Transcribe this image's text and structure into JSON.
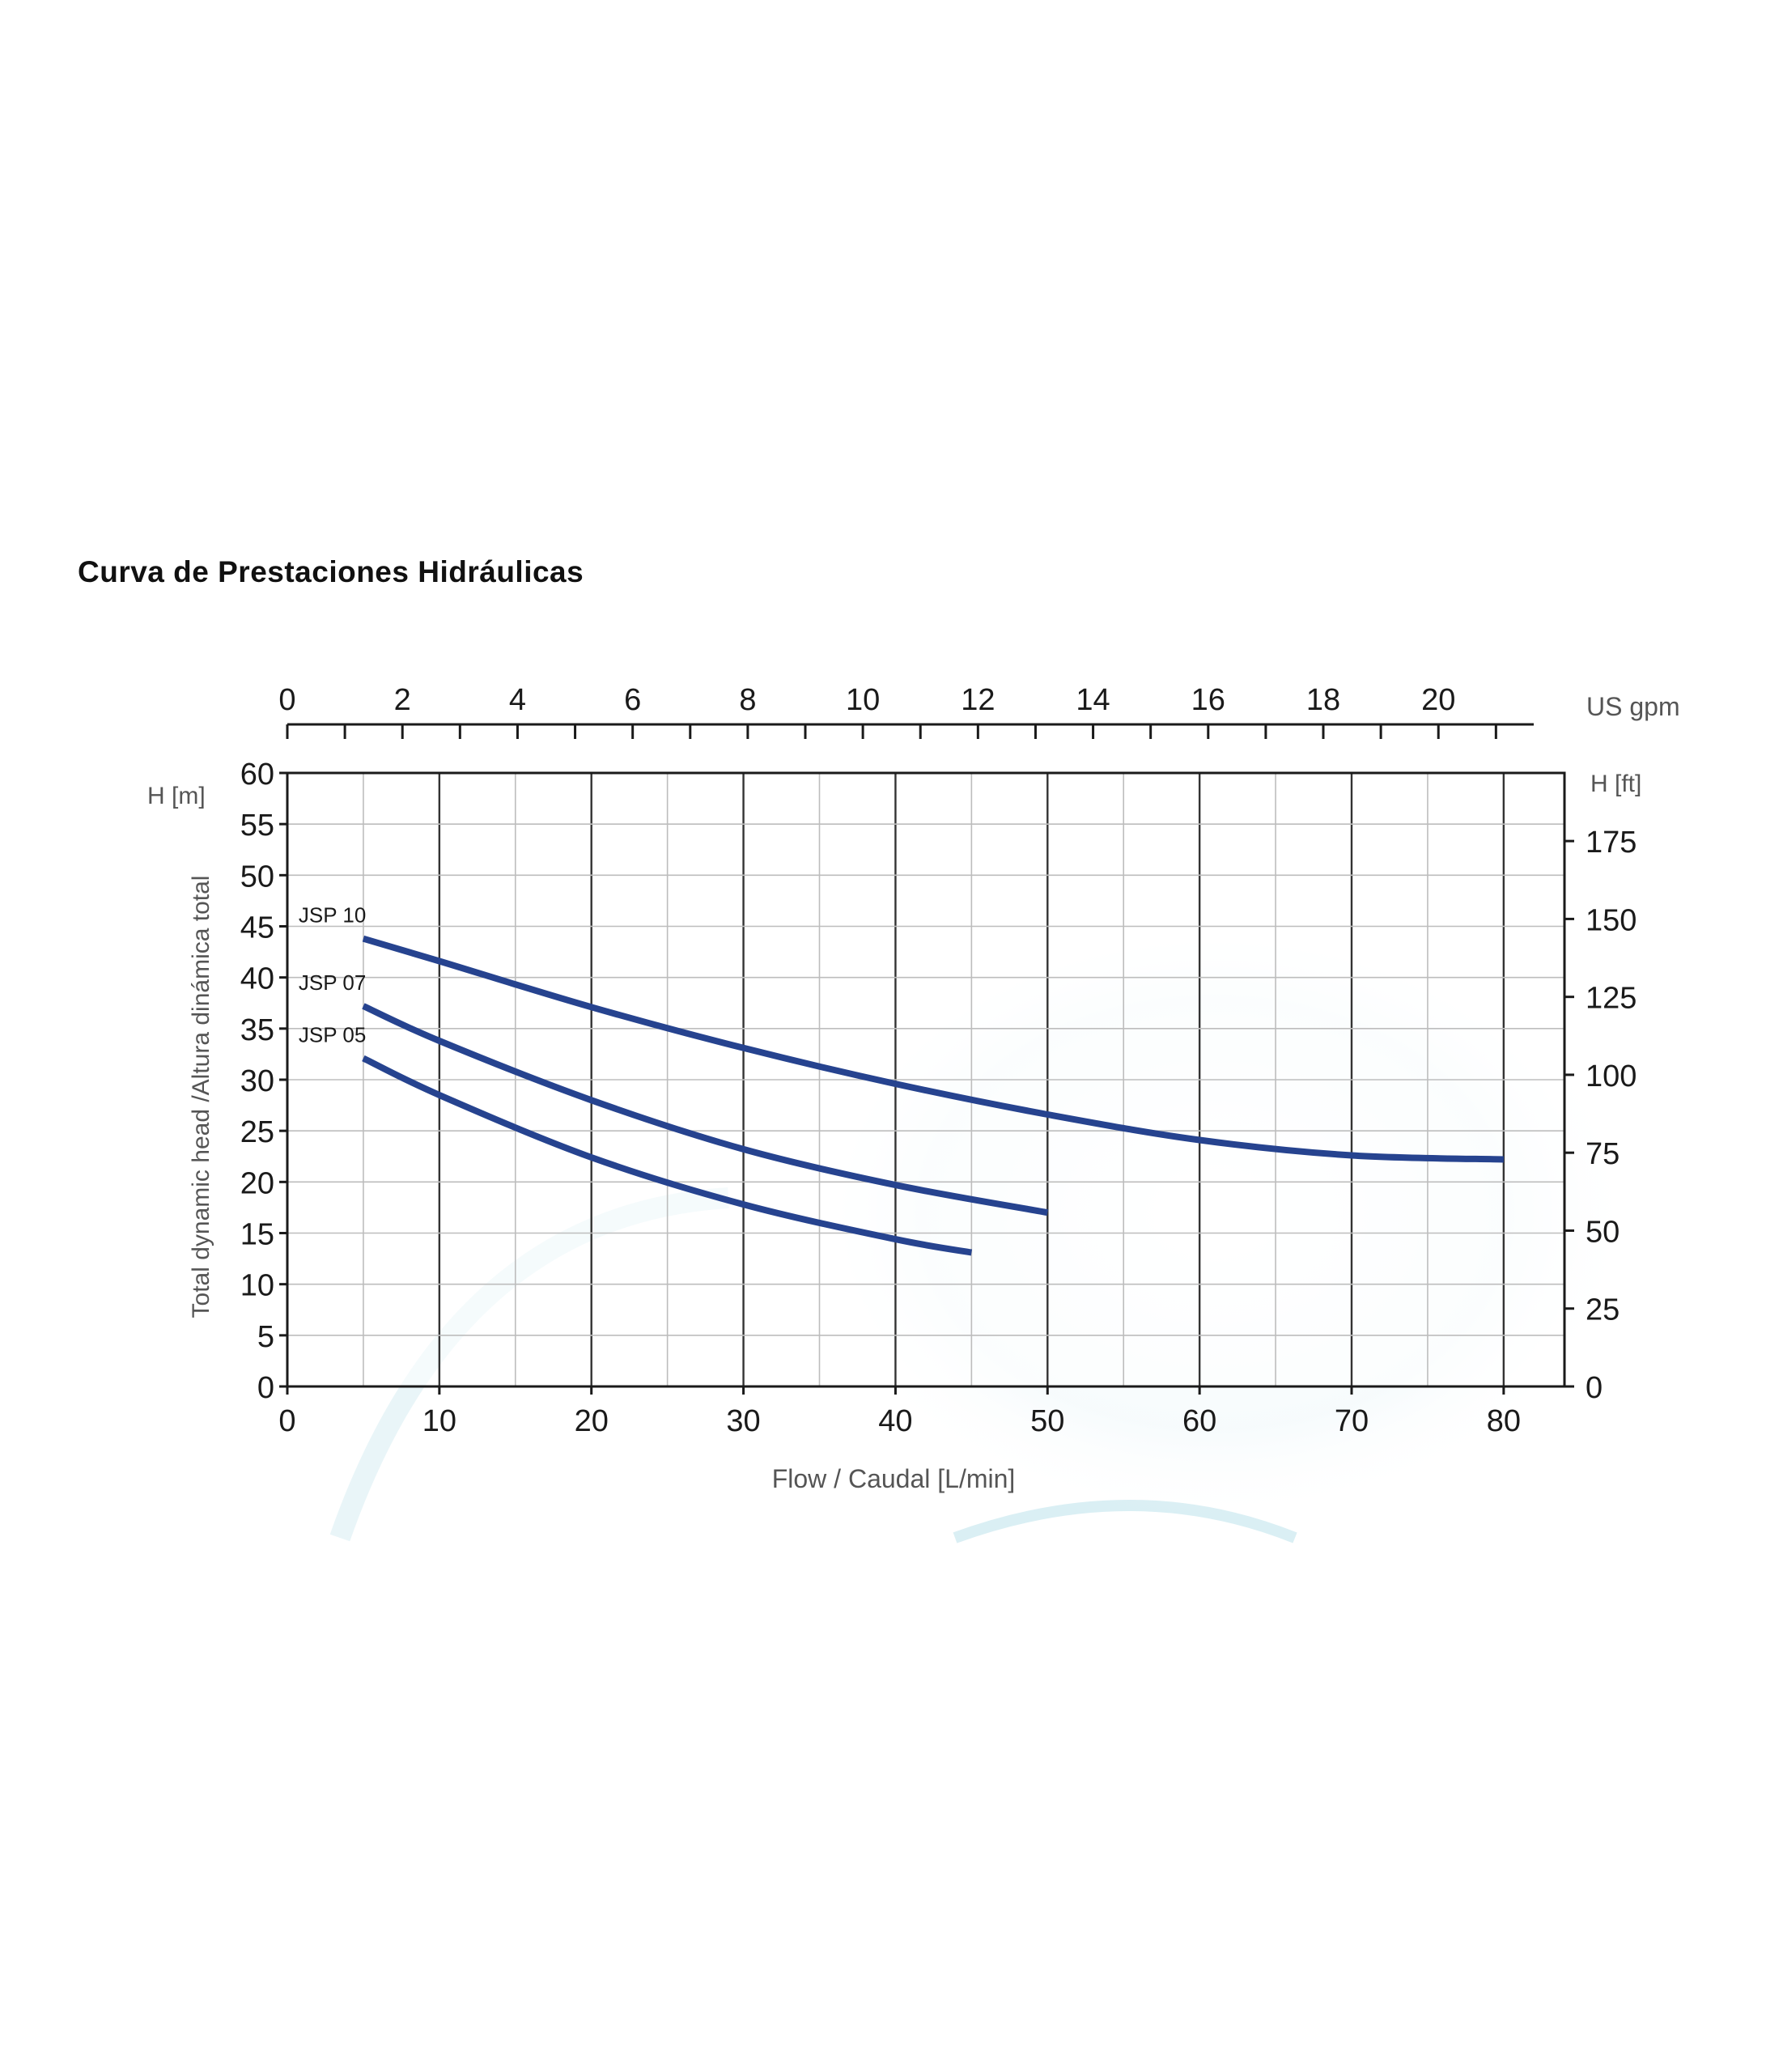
{
  "page_title": "Curva de Prestaciones Hidráulicas",
  "chart_data": {
    "type": "line",
    "title": "Curva de Prestaciones Hidráulicas",
    "xlabel": "Flow / Caudal [L/min]",
    "ylabel": "Total dynamic head /Altura dinámica total",
    "left_unit": "H [m]",
    "right_unit": "H [ft]",
    "top_unit": "US gpm",
    "xlim": [
      0,
      84
    ],
    "ylim": [
      0,
      60
    ],
    "x_ticks": [
      "0",
      "10",
      "20",
      "30",
      "40",
      "50",
      "60",
      "70",
      "80"
    ],
    "y_ticks": [
      "0",
      "5",
      "10",
      "15",
      "20",
      "25",
      "30",
      "35",
      "40",
      "45",
      "50",
      "55",
      "60"
    ],
    "ft_ticks": [
      "0",
      "25",
      "50",
      "75",
      "100",
      "125",
      "150",
      "175"
    ],
    "gpm_ticks": [
      "0",
      "2",
      "4",
      "6",
      "8",
      "10",
      "12",
      "14",
      "16",
      "18",
      "20"
    ],
    "grid": true,
    "series": [
      {
        "name": "JSP 10",
        "x": [
          5,
          10,
          20,
          30,
          40,
          50,
          60,
          70,
          80
        ],
        "y": [
          43.8,
          41.6,
          37.1,
          33.1,
          29.6,
          26.6,
          24.1,
          22.6,
          22.2
        ]
      },
      {
        "name": "JSP 07",
        "x": [
          5,
          10,
          20,
          30,
          40,
          50
        ],
        "y": [
          37.2,
          33.8,
          28.0,
          23.2,
          19.7,
          17.0
        ]
      },
      {
        "name": "JSP 05",
        "x": [
          5,
          10,
          20,
          30,
          40,
          45
        ],
        "y": [
          32.1,
          28.5,
          22.4,
          17.8,
          14.4,
          13.1
        ]
      }
    ],
    "colors": {
      "line": "#26438f",
      "grid": "#bdbdbd",
      "major_grid": "#333333",
      "axis": "#1a1a1a"
    }
  }
}
